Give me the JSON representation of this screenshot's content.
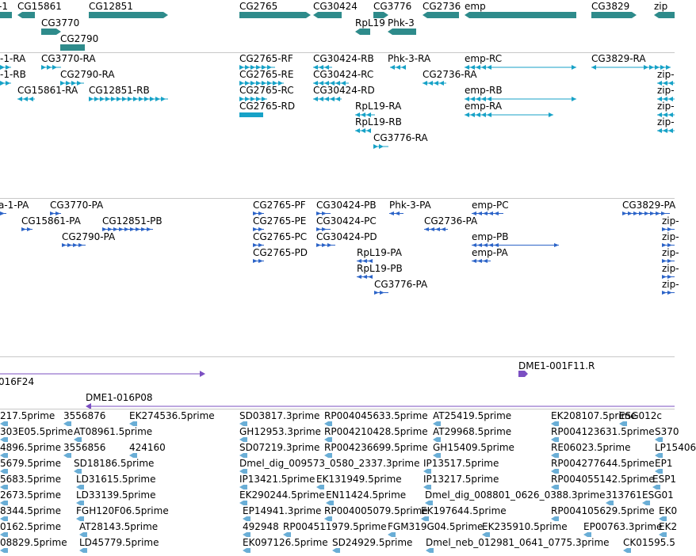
{
  "colors": {
    "gene": "#2e8b8b",
    "transcript": "#17a2c7",
    "protein": "#2c64c8",
    "clone": "#7b4fc2",
    "est": "#6aaed6",
    "divider": "#c8c8c8"
  },
  "tracks": {
    "genes": [
      {
        "label": "-1",
        "glyph": "bar"
      },
      {
        "label": "CG15861",
        "glyph": "arrow-left"
      },
      {
        "label": "CG12851",
        "glyph": "arrow-right"
      },
      {
        "label": "CG3770",
        "glyph": "arrow-right"
      },
      {
        "label": "CG2790",
        "glyph": "bar"
      },
      {
        "label": "CG2765",
        "glyph": "arrow-right"
      },
      {
        "label": "CG30424",
        "glyph": "arrow-left"
      },
      {
        "label": "CG3776",
        "glyph": "arrow-right"
      },
      {
        "label": "RpL19",
        "glyph": "arrow-left"
      },
      {
        "label": "Phk-3",
        "glyph": "arrow-left"
      },
      {
        "label": "CG2736",
        "glyph": "arrow-left"
      },
      {
        "label": "emp",
        "glyph": "arrow-left"
      },
      {
        "label": "CG3829",
        "glyph": "arrow-right"
      },
      {
        "label": "zip",
        "glyph": "arrow-left"
      }
    ],
    "transcripts": [
      {
        "label": "-1-RA"
      },
      {
        "label": "-1-RB"
      },
      {
        "label": "CG3770-RA"
      },
      {
        "label": "CG2790-RA"
      },
      {
        "label": "CG15861-RA"
      },
      {
        "label": "CG12851-RB"
      },
      {
        "label": "CG2765-RF"
      },
      {
        "label": "CG2765-RE"
      },
      {
        "label": "CG2765-RC"
      },
      {
        "label": "CG2765-RD"
      },
      {
        "label": "CG30424-RB"
      },
      {
        "label": "CG30424-RC"
      },
      {
        "label": "CG30424-RD"
      },
      {
        "label": "Phk-3-RA"
      },
      {
        "label": "CG2736-RA"
      },
      {
        "label": "RpL19-RA"
      },
      {
        "label": "RpL19-RB"
      },
      {
        "label": "CG3776-RA"
      },
      {
        "label": "emp-RC"
      },
      {
        "label": "emp-RB"
      },
      {
        "label": "emp-RA"
      },
      {
        "label": "CG3829-RA"
      },
      {
        "label": "zip-"
      },
      {
        "label": "zip-"
      },
      {
        "label": "zip-"
      },
      {
        "label": "zip-"
      }
    ],
    "proteins": [
      {
        "label": "a-1-PA"
      },
      {
        "label": "CG3770-PA"
      },
      {
        "label": "CG15861-PA"
      },
      {
        "label": "CG12851-PB"
      },
      {
        "label": "CG2790-PA"
      },
      {
        "label": "CG2765-PF"
      },
      {
        "label": "CG2765-PE"
      },
      {
        "label": "CG2765-PC"
      },
      {
        "label": "CG2765-PD"
      },
      {
        "label": "CG30424-PB"
      },
      {
        "label": "CG30424-PC"
      },
      {
        "label": "CG30424-PD"
      },
      {
        "label": "Phk-3-PA"
      },
      {
        "label": "CG2736-PA"
      },
      {
        "label": "RpL19-PA"
      },
      {
        "label": "RpL19-PB"
      },
      {
        "label": "CG3776-PA"
      },
      {
        "label": "emp-PC"
      },
      {
        "label": "emp-PB"
      },
      {
        "label": "emp-PA"
      },
      {
        "label": "CG3829-PA"
      },
      {
        "label": "zip-"
      },
      {
        "label": "zip-"
      },
      {
        "label": "zip-"
      },
      {
        "label": "zip-"
      },
      {
        "label": "zip-"
      }
    ],
    "clones": [
      {
        "label": "016F24"
      },
      {
        "label": "DME1-001F11.R"
      },
      {
        "label": "DME1-016P08"
      }
    ],
    "ests": [
      "217.5prime",
      "3556876",
      "EK274536.5prime",
      "SD03817.3prime",
      "RP004045633.5prime",
      "AT25419.5prime",
      "EK208107.5prime",
      "ESG012c",
      "303E05.5prime",
      "AT08961.5prime",
      "GH12953.3prime",
      "RP004210428.5prime",
      "AT29968.5prime",
      "RP004123631.5prime",
      "S370",
      "4896.5prime",
      "3556856",
      "424160",
      "SD07219.3prime",
      "RP004236699.5prime",
      "GH15409.5prime",
      "RE06023.5prime",
      "LP15406",
      "5679.5prime",
      "SD18186.5prime",
      "Dmel_dig_009573_0580_2337.3prime",
      "IP13517.5prime",
      "RP004277644.5prime",
      "EP1",
      "5683.5prime",
      "LD31615.5prime",
      "IP13421.5prime",
      "EK131949.5prime",
      "IP13217.5prime",
      "RP004055142.5prime",
      "ESP1",
      "2673.5prime",
      "LD33139.5prime",
      "EK290244.5prime",
      "EN11424.5prime",
      "Dmel_dig_008801_0626_0388.3prime",
      "313761",
      "ESG01",
      "8344.5prime",
      "FGH120F06.5prime",
      "EP14941.3prime",
      "RP004005079.5prime",
      "EK197644.5prime",
      "RP004105629.5prime",
      "EK0",
      "0162.5prime",
      "AT28143.5prime",
      "492948",
      "RP004511979.5prime",
      "FGM319G04.5prime",
      "EK235910.5prime",
      "EP00763.3prime",
      "EK2",
      "08829.5prime",
      "LD45779.5prime",
      "EK097126.5prime",
      "SD24929.5prime",
      "Dmel_neb_012981_0641_0775.3prime",
      "CK01595.5"
    ]
  }
}
